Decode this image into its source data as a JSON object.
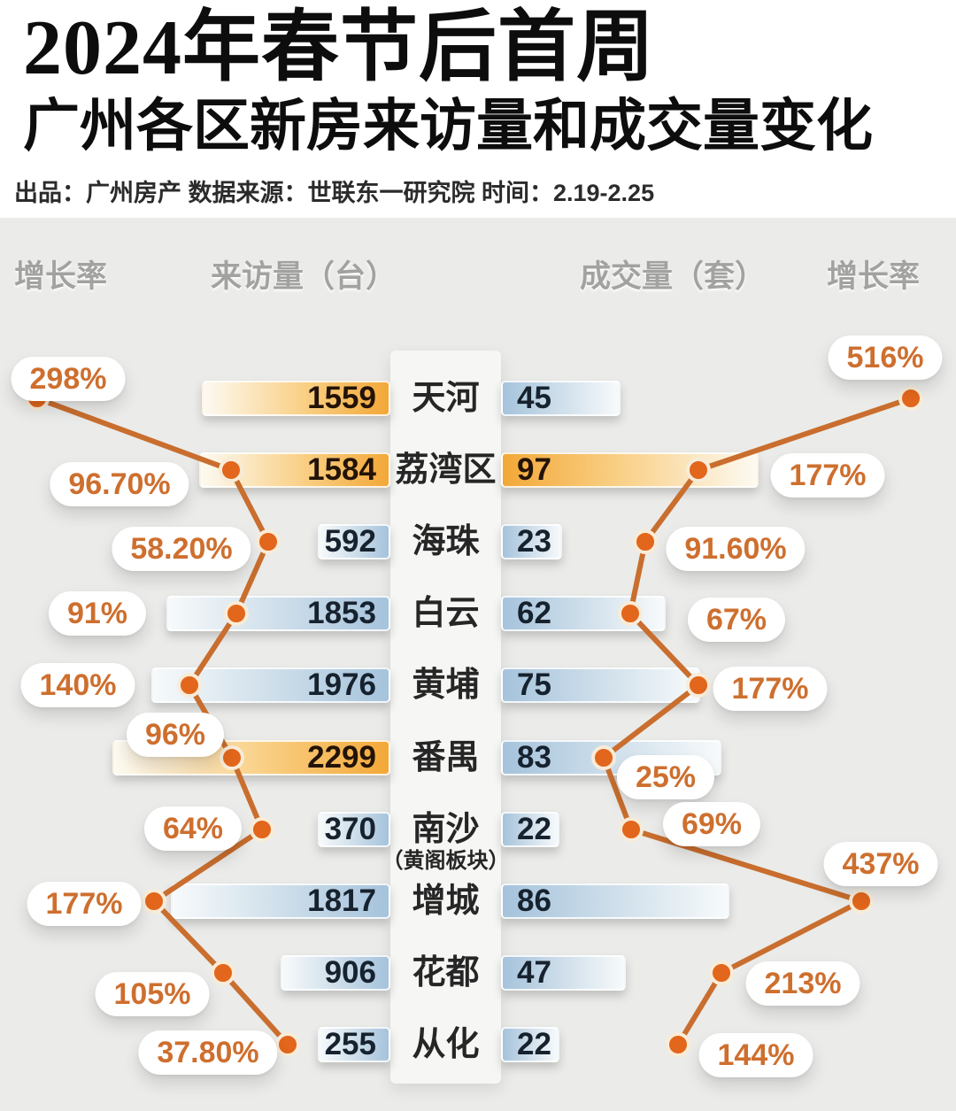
{
  "header": {
    "title_line1": "2024年春节后首周",
    "title_line2": "广州各区新房来访量和成交量变化",
    "credits": "出品：广州房产  数据来源：世联东一研究院  时间：2.19-2.25"
  },
  "column_headers": {
    "left_growth": "增长率",
    "visits": "来访量（台）",
    "deals": "成交量（套）",
    "right_growth": "增长率"
  },
  "chart_data": {
    "type": "bar",
    "title": "2024年春节后首周广州各区新房来访量和成交量变化",
    "period": "2.19-2.25",
    "layout_hint": "diverging horizontal bars from center district column; orange trend lines with dots show growth rate on both outer sides",
    "categories": [
      "天河",
      "荔湾区",
      "海珠",
      "白云",
      "黄埔",
      "番禺",
      "南沙",
      "增城",
      "花都",
      "从化"
    ],
    "series": [
      {
        "name": "来访量增长率",
        "unit": "%",
        "values": [
          298,
          96.7,
          58.2,
          91,
          140,
          96,
          64,
          177,
          105,
          37.8
        ]
      },
      {
        "name": "来访量",
        "unit": "台",
        "values": [
          1559,
          1584,
          592,
          1853,
          1976,
          2299,
          370,
          1817,
          906,
          255
        ]
      },
      {
        "name": "成交量",
        "unit": "套",
        "values": [
          45,
          97,
          23,
          62,
          75,
          83,
          22,
          86,
          47,
          22
        ]
      },
      {
        "name": "成交量增长率",
        "unit": "%",
        "values": [
          516,
          177,
          91.6,
          67,
          177,
          25,
          69,
          437,
          213,
          144
        ]
      }
    ],
    "rows": [
      {
        "district": "天河",
        "note": "",
        "visits": "1559",
        "visits_growth": "298%",
        "deals": "45",
        "deals_growth": "516%",
        "visits_bar": "orange",
        "deals_bar": "blue"
      },
      {
        "district": "荔湾区",
        "note": "",
        "visits": "1584",
        "visits_growth": "96.70%",
        "deals": "97",
        "deals_growth": "177%",
        "visits_bar": "orange",
        "deals_bar": "orange"
      },
      {
        "district": "海珠",
        "note": "",
        "visits": "592",
        "visits_growth": "58.20%",
        "deals": "23",
        "deals_growth": "91.60%",
        "visits_bar": "blue",
        "deals_bar": "blue"
      },
      {
        "district": "白云",
        "note": "",
        "visits": "1853",
        "visits_growth": "91%",
        "deals": "62",
        "deals_growth": "67%",
        "visits_bar": "blue",
        "deals_bar": "blue"
      },
      {
        "district": "黄埔",
        "note": "",
        "visits": "1976",
        "visits_growth": "140%",
        "deals": "75",
        "deals_growth": "177%",
        "visits_bar": "blue",
        "deals_bar": "blue"
      },
      {
        "district": "番禺",
        "note": "",
        "visits": "2299",
        "visits_growth": "96%",
        "deals": "83",
        "deals_growth": "25%",
        "visits_bar": "orange",
        "deals_bar": "blue"
      },
      {
        "district": "南沙",
        "note": "（黄阁板块）",
        "visits": "370",
        "visits_growth": "64%",
        "deals": "22",
        "deals_growth": "69%",
        "visits_bar": "blue",
        "deals_bar": "blue"
      },
      {
        "district": "增城",
        "note": "",
        "visits": "1817",
        "visits_growth": "177%",
        "deals": "86",
        "deals_growth": "437%",
        "visits_bar": "blue",
        "deals_bar": "blue"
      },
      {
        "district": "花都",
        "note": "",
        "visits": "906",
        "visits_growth": "105%",
        "deals": "47",
        "deals_growth": "213%",
        "visits_bar": "blue",
        "deals_bar": "blue"
      },
      {
        "district": "从化",
        "note": "",
        "visits": "255",
        "visits_growth": "37.80%",
        "deals": "22",
        "deals_growth": "144%",
        "visits_bar": "blue",
        "deals_bar": "blue"
      }
    ]
  },
  "colors": {
    "page_background": "#ebebe9",
    "masthead_background": "#ffffff",
    "bar_orange": "#f3a838",
    "bar_blue": "#a5c3dc",
    "trend_line": "#c96e2e",
    "trend_dot": "#e2661c",
    "dot_ring": "#f8ecd8",
    "growth_text": "#ce6f2e",
    "column_header_gray": "#a2a2a0"
  }
}
